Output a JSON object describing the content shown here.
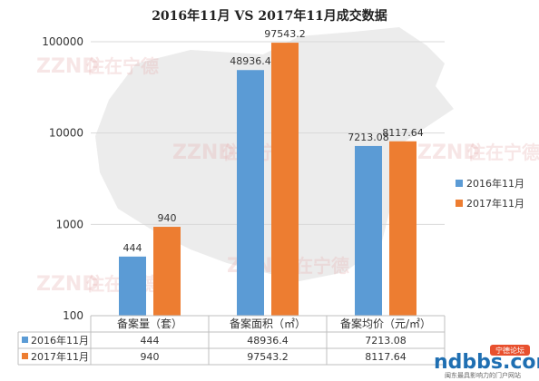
{
  "chart_data": {
    "type": "bar",
    "title": "2016年11月 VS 2017年11月成交数据",
    "y_scale": "log",
    "ylim": [
      100,
      100000
    ],
    "y_ticks": [
      "100",
      "1000",
      "10000",
      "100000"
    ],
    "categories": [
      "备案量（套）",
      "备案面积（㎡）",
      "备案均价（元/㎡）"
    ],
    "series": [
      {
        "name": "2016年11月",
        "color": "#5b9bd5",
        "values": [
          444,
          48936.4,
          7213.08
        ],
        "labels": [
          "444",
          "48936.4",
          "7213.08"
        ]
      },
      {
        "name": "2017年11月",
        "color": "#ed7d31",
        "values": [
          940,
          97543.2,
          8117.64
        ],
        "labels": [
          "940",
          "97543.2",
          "8117.64"
        ]
      }
    ],
    "legend_position": "right",
    "grid": true,
    "data_table": true
  },
  "watermark": {
    "text": "住在宁德",
    "logo": "ZZND"
  },
  "brand": {
    "name": "ndbbs.com",
    "tag": "宁德论坛",
    "slogan": "闽东最具影响力的门户网站"
  },
  "colors": {
    "series_2016": "#5b9bd5",
    "series_2017": "#ed7d31"
  }
}
